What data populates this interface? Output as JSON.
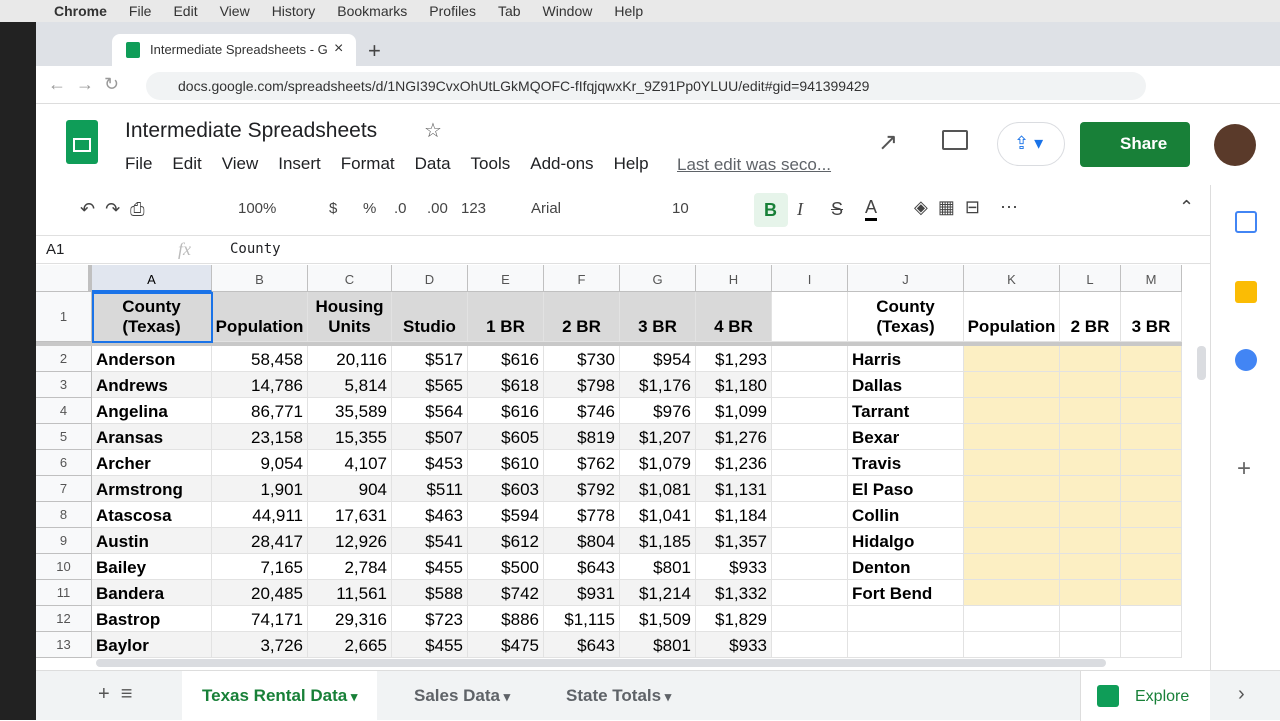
{
  "mac_menu": [
    "Chrome",
    "File",
    "Edit",
    "View",
    "History",
    "Bookmarks",
    "Profiles",
    "Tab",
    "Window",
    "Help"
  ],
  "browser": {
    "tab_title": "Intermediate Spreadsheets - G",
    "url": "docs.google.com/spreadsheets/d/1NGI39CvxOhUtLGkMQOFC-fIfqjqwxKr_9Z91Pp0YLUU/edit#gid=941399429"
  },
  "header": {
    "title": "Intermediate Spreadsheets",
    "menus": [
      "File",
      "Edit",
      "View",
      "Insert",
      "Format",
      "Data",
      "Tools",
      "Add-ons",
      "Help"
    ],
    "last_edit": "Last edit was seco...",
    "share": "Share"
  },
  "toolbar": {
    "zoom": "100%",
    "currency": "$",
    "percent": "%",
    "dec_less": ".0",
    "dec_more": ".00",
    "format": "123",
    "font": "Arial",
    "size": "10",
    "bold": "B",
    "italic": "I",
    "strike": "S",
    "text_color": "A"
  },
  "formula_bar": {
    "name_box": "A1",
    "fx": "fx",
    "content": "County"
  },
  "sheet": {
    "columns": [
      "A",
      "B",
      "C",
      "D",
      "E",
      "F",
      "G",
      "H",
      "I",
      "J",
      "K",
      "L",
      "M"
    ],
    "row_numbers": [
      "1",
      "2",
      "3",
      "4",
      "5",
      "6",
      "7",
      "8",
      "9",
      "10",
      "11",
      "12",
      "13"
    ],
    "header": [
      "County (Texas)",
      "Population",
      "Housing Units",
      "Studio",
      "1 BR",
      "2 BR",
      "3 BR",
      "4 BR"
    ],
    "rows": [
      [
        "Anderson",
        "58,458",
        "20,116",
        "$517",
        "$616",
        "$730",
        "$954",
        "$1,293"
      ],
      [
        "Andrews",
        "14,786",
        "5,814",
        "$565",
        "$618",
        "$798",
        "$1,176",
        "$1,180"
      ],
      [
        "Angelina",
        "86,771",
        "35,589",
        "$564",
        "$616",
        "$746",
        "$976",
        "$1,099"
      ],
      [
        "Aransas",
        "23,158",
        "15,355",
        "$507",
        "$605",
        "$819",
        "$1,207",
        "$1,276"
      ],
      [
        "Archer",
        "9,054",
        "4,107",
        "$453",
        "$610",
        "$762",
        "$1,079",
        "$1,236"
      ],
      [
        "Armstrong",
        "1,901",
        "904",
        "$511",
        "$603",
        "$792",
        "$1,081",
        "$1,131"
      ],
      [
        "Atascosa",
        "44,911",
        "17,631",
        "$463",
        "$594",
        "$778",
        "$1,041",
        "$1,184"
      ],
      [
        "Austin",
        "28,417",
        "12,926",
        "$541",
        "$612",
        "$804",
        "$1,185",
        "$1,357"
      ],
      [
        "Bailey",
        "7,165",
        "2,784",
        "$455",
        "$500",
        "$643",
        "$801",
        "$933"
      ],
      [
        "Bandera",
        "20,485",
        "11,561",
        "$588",
        "$742",
        "$931",
        "$1,214",
        "$1,332"
      ],
      [
        "Bastrop",
        "74,171",
        "29,316",
        "$723",
        "$886",
        "$1,115",
        "$1,509",
        "$1,829"
      ],
      [
        "Baylor",
        "3,726",
        "2,665",
        "$455",
        "$475",
        "$643",
        "$801",
        "$933"
      ]
    ],
    "lookup": {
      "header": [
        "County (Texas)",
        "Population",
        "2 BR",
        "3 BR"
      ],
      "counties": [
        "Harris",
        "Dallas",
        "Tarrant",
        "Bexar",
        "Travis",
        "El Paso",
        "Collin",
        "Hidalgo",
        "Denton",
        "Fort Bend"
      ]
    }
  },
  "sheet_tabs": [
    "Texas Rental Data",
    "Sales Data",
    "State Totals"
  ],
  "explore": "Explore"
}
